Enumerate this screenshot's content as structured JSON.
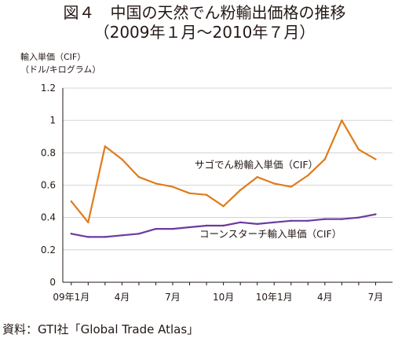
{
  "chart_data": {
    "type": "line",
    "title_line1": "図４　中国の天然でん粉輸出価格の推移",
    "title_line2": "（2009年１月〜2010年７月）",
    "ylabel_line1": "輸入単価（CIF）",
    "ylabel_line2": "（ドル/キログラム）",
    "xlabel": "",
    "ylim": [
      0,
      1.2
    ],
    "yticks": [
      "0",
      "0.2",
      "0.4",
      "0.6",
      "0.8",
      "1",
      "1.2"
    ],
    "x_tick_labels": [
      "09年1月",
      "",
      "",
      "4月",
      "",
      "",
      "7月",
      "",
      "",
      "10月",
      "",
      "",
      "10年1月",
      "",
      "",
      "4月",
      "",
      "",
      "7月"
    ],
    "grid": true,
    "categories": [
      "2009-01",
      "2009-02",
      "2009-03",
      "2009-04",
      "2009-05",
      "2009-06",
      "2009-07",
      "2009-08",
      "2009-09",
      "2009-10",
      "2009-11",
      "2009-12",
      "2010-01",
      "2010-02",
      "2010-03",
      "2010-04",
      "2010-05",
      "2010-06",
      "2010-07"
    ],
    "series": [
      {
        "name": "サゴでん粉輸入単価（CIF）",
        "color": "#e07b1a",
        "values": [
          0.5,
          0.37,
          0.84,
          0.76,
          0.65,
          0.61,
          0.59,
          0.55,
          0.54,
          0.47,
          0.57,
          0.65,
          0.61,
          0.59,
          0.66,
          0.76,
          1.0,
          0.82,
          0.76
        ]
      },
      {
        "name": "コーンスターチ輸入単価（CIF）",
        "color": "#6b3aa0",
        "values": [
          0.3,
          0.28,
          0.28,
          0.29,
          0.3,
          0.33,
          0.33,
          0.34,
          0.35,
          0.35,
          0.37,
          0.36,
          0.37,
          0.38,
          0.38,
          0.39,
          0.39,
          0.4,
          0.42
        ]
      }
    ]
  },
  "source": "資料：GTI社「Global Trade Atlas」"
}
